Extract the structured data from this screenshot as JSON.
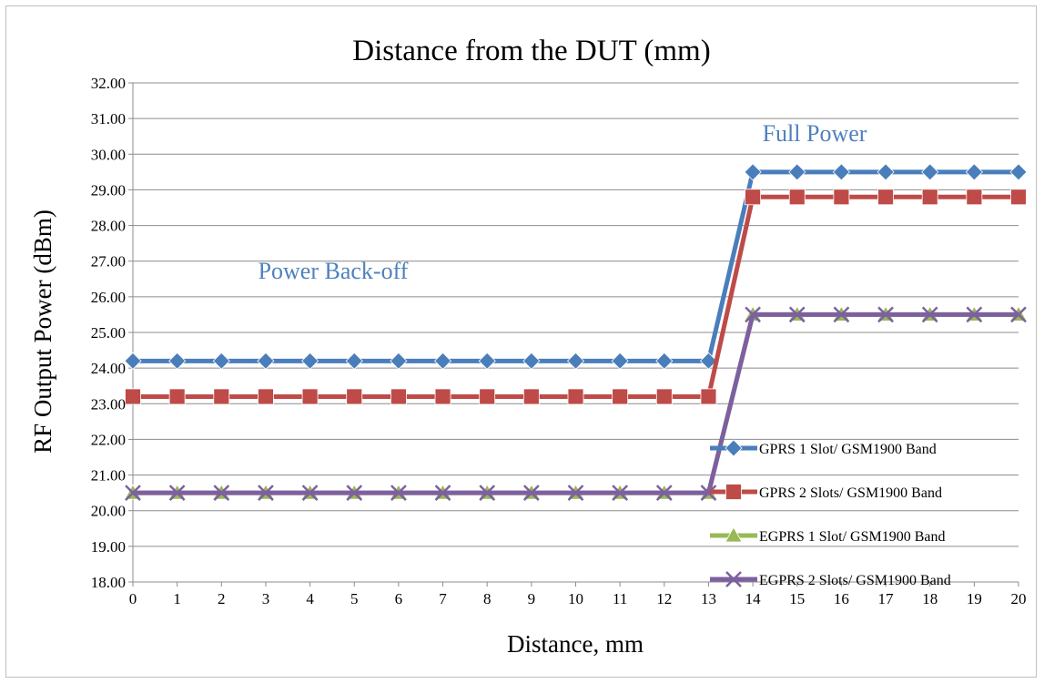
{
  "chart_data": {
    "type": "line",
    "title": "Distance from the DUT (mm)",
    "xlabel": "Distance, mm",
    "ylabel": "RF Output Power (dBm)",
    "ylim": [
      18,
      32
    ],
    "y_ticks": [
      "18.00",
      "19.00",
      "20.00",
      "21.00",
      "22.00",
      "23.00",
      "24.00",
      "25.00",
      "26.00",
      "27.00",
      "28.00",
      "29.00",
      "30.00",
      "31.00",
      "32.00"
    ],
    "categories": [
      "0",
      "1",
      "2",
      "3",
      "4",
      "5",
      "6",
      "7",
      "8",
      "9",
      "10",
      "11",
      "12",
      "13",
      "14",
      "15",
      "16",
      "17",
      "18",
      "19",
      "20"
    ],
    "grid": true,
    "legend_position": "right",
    "annotations": [
      {
        "text": "Full Power",
        "color": "#4f81bd"
      },
      {
        "text": "Power Back-off",
        "color": "#4f81bd"
      }
    ],
    "series": [
      {
        "name": "GPRS 1 Slot/ GSM1900 Band",
        "color": "#4a7ebb",
        "marker": "diamond",
        "values": [
          24.2,
          24.2,
          24.2,
          24.2,
          24.2,
          24.2,
          24.2,
          24.2,
          24.2,
          24.2,
          24.2,
          24.2,
          24.2,
          24.2,
          29.5,
          29.5,
          29.5,
          29.5,
          29.5,
          29.5,
          29.5
        ]
      },
      {
        "name": "GPRS 2 Slots/ GSM1900 Band",
        "color": "#be4b48",
        "marker": "square",
        "values": [
          23.2,
          23.2,
          23.2,
          23.2,
          23.2,
          23.2,
          23.2,
          23.2,
          23.2,
          23.2,
          23.2,
          23.2,
          23.2,
          23.2,
          28.8,
          28.8,
          28.8,
          28.8,
          28.8,
          28.8,
          28.8
        ]
      },
      {
        "name": "EGPRS 1 Slot/ GSM1900 Band",
        "color": "#98b954",
        "marker": "triangle",
        "values": [
          20.5,
          20.5,
          20.5,
          20.5,
          20.5,
          20.5,
          20.5,
          20.5,
          20.5,
          20.5,
          20.5,
          20.5,
          20.5,
          20.5,
          25.5,
          25.5,
          25.5,
          25.5,
          25.5,
          25.5,
          25.5
        ]
      },
      {
        "name": "EGPRS 2 Slots/ GSM1900 Band",
        "color": "#7d60a0",
        "marker": "x",
        "values": [
          20.5,
          20.5,
          20.5,
          20.5,
          20.5,
          20.5,
          20.5,
          20.5,
          20.5,
          20.5,
          20.5,
          20.5,
          20.5,
          20.5,
          25.5,
          25.5,
          25.5,
          25.5,
          25.5,
          25.5,
          25.5
        ]
      }
    ]
  }
}
